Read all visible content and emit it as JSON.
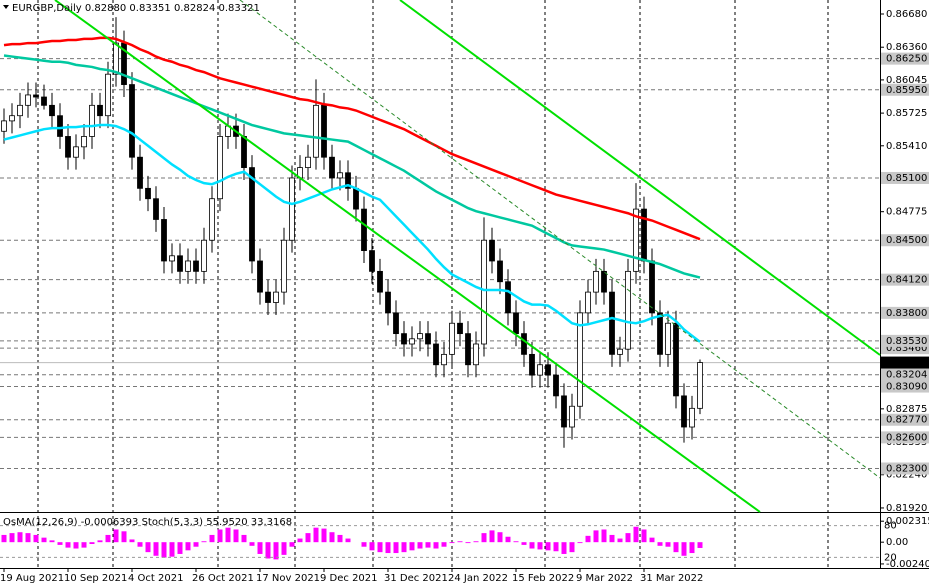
{
  "chart_data": [
    {
      "type": "candlestick",
      "title": "EURGBP,Daily  0.82880 0.83351 0.82824 0.83321",
      "categories": [
        "19 Aug 2021",
        null,
        null,
        null,
        null,
        null,
        null,
        null,
        "10 Sep 2021",
        null,
        null,
        null,
        null,
        null,
        null,
        null,
        "4 Oct 2021",
        null,
        null,
        null,
        null,
        null,
        null,
        null,
        "26 Oct 2021",
        null,
        null,
        null,
        null,
        null,
        null,
        null,
        "17 Nov 2021",
        null,
        null,
        null,
        null,
        null,
        null,
        null,
        "9 Dec 2021",
        null,
        null,
        null,
        null,
        null,
        null,
        null,
        "31 Dec 2021",
        null,
        null,
        null,
        null,
        null,
        null,
        null,
        "24 Jan 2022",
        null,
        null,
        null,
        null,
        null,
        null,
        null,
        "15 Feb 2022",
        null,
        null,
        null,
        null,
        null,
        null,
        null,
        "9 Mar 2022",
        null,
        null,
        null,
        null,
        null,
        null,
        null,
        "31 Mar 2022",
        null,
        null,
        null,
        null,
        null,
        null,
        null
      ],
      "open": [
        0.8555,
        0.8565,
        0.857,
        0.858,
        0.859,
        0.8588,
        0.858,
        0.857,
        0.855,
        0.853,
        0.854,
        0.855,
        0.858,
        0.857,
        0.861,
        0.864,
        0.86,
        0.853,
        0.85,
        0.849,
        0.847,
        0.843,
        0.8435,
        0.842,
        0.843,
        0.842,
        0.845,
        0.849,
        0.855,
        0.856,
        0.855,
        0.852,
        0.843,
        0.84,
        0.839,
        0.84,
        0.845,
        0.851,
        0.852,
        0.853,
        0.858,
        0.853,
        0.851,
        0.8515,
        0.85,
        0.848,
        0.844,
        0.842,
        0.84,
        0.838,
        0.836,
        0.835,
        0.8355,
        0.836,
        0.835,
        0.833,
        0.834,
        0.837,
        0.836,
        0.833,
        0.835,
        0.845,
        0.843,
        0.841,
        0.838,
        0.836,
        0.834,
        0.832,
        0.833,
        0.832,
        0.83,
        0.827,
        0.829,
        0.838,
        0.84,
        0.842,
        0.84,
        0.834,
        0.8345,
        0.842,
        0.848,
        0.843,
        0.838,
        0.834,
        0.837,
        0.83,
        0.827,
        0.8288
      ],
      "high": [
        0.8577,
        0.8582,
        0.8592,
        0.8602,
        0.8602,
        0.86,
        0.8592,
        0.8582,
        0.8562,
        0.8552,
        0.8562,
        0.8592,
        0.8592,
        0.8622,
        0.8665,
        0.8652,
        0.8612,
        0.8542,
        0.8512,
        0.8502,
        0.8482,
        0.8447,
        0.8447,
        0.8442,
        0.8442,
        0.8462,
        0.8502,
        0.8562,
        0.8572,
        0.8572,
        0.8562,
        0.8532,
        0.8442,
        0.8412,
        0.8412,
        0.8462,
        0.8522,
        0.8532,
        0.8542,
        0.8605,
        0.8592,
        0.8542,
        0.8527,
        0.8527,
        0.8512,
        0.8492,
        0.8452,
        0.8432,
        0.8412,
        0.8392,
        0.8372,
        0.8367,
        0.8372,
        0.8372,
        0.8362,
        0.8352,
        0.8382,
        0.8382,
        0.8372,
        0.8362,
        0.8472,
        0.8462,
        0.8442,
        0.8422,
        0.8392,
        0.8372,
        0.8352,
        0.8342,
        0.8342,
        0.8332,
        0.8312,
        0.8302,
        0.8392,
        0.8412,
        0.8432,
        0.8432,
        0.8412,
        0.8357,
        0.8432,
        0.8505,
        0.8492,
        0.8442,
        0.8392,
        0.8382,
        0.8382,
        0.8312,
        0.83,
        0.83351
      ],
      "low": [
        0.8543,
        0.8553,
        0.8558,
        0.8568,
        0.8578,
        0.8576,
        0.8558,
        0.8538,
        0.8518,
        0.8518,
        0.8528,
        0.8538,
        0.8558,
        0.8558,
        0.8598,
        0.8588,
        0.8518,
        0.8488,
        0.8478,
        0.8458,
        0.8418,
        0.8418,
        0.8408,
        0.8408,
        0.8408,
        0.8408,
        0.8438,
        0.8478,
        0.8538,
        0.8538,
        0.8508,
        0.8418,
        0.8388,
        0.8378,
        0.8378,
        0.8388,
        0.8438,
        0.8498,
        0.8508,
        0.8518,
        0.8518,
        0.8498,
        0.8498,
        0.8488,
        0.8468,
        0.8428,
        0.8408,
        0.8388,
        0.8368,
        0.8348,
        0.8338,
        0.8338,
        0.8343,
        0.8338,
        0.8318,
        0.8318,
        0.8328,
        0.8348,
        0.8318,
        0.8318,
        0.8338,
        0.8418,
        0.8398,
        0.8368,
        0.8348,
        0.8328,
        0.8308,
        0.8308,
        0.8308,
        0.8288,
        0.825,
        0.8258,
        0.8278,
        0.8368,
        0.8388,
        0.8388,
        0.8328,
        0.8328,
        0.8333,
        0.8408,
        0.8418,
        0.8368,
        0.8328,
        0.8328,
        0.8288,
        0.8255,
        0.8258,
        0.82824
      ],
      "close": [
        0.8565,
        0.857,
        0.858,
        0.859,
        0.8588,
        0.858,
        0.857,
        0.855,
        0.853,
        0.854,
        0.855,
        0.858,
        0.857,
        0.861,
        0.864,
        0.86,
        0.853,
        0.85,
        0.849,
        0.847,
        0.843,
        0.8435,
        0.842,
        0.843,
        0.842,
        0.845,
        0.849,
        0.855,
        0.856,
        0.855,
        0.852,
        0.843,
        0.84,
        0.839,
        0.84,
        0.845,
        0.851,
        0.852,
        0.853,
        0.858,
        0.853,
        0.851,
        0.8515,
        0.85,
        0.848,
        0.844,
        0.842,
        0.84,
        0.838,
        0.836,
        0.835,
        0.8355,
        0.836,
        0.835,
        0.833,
        0.834,
        0.837,
        0.836,
        0.833,
        0.835,
        0.845,
        0.843,
        0.841,
        0.838,
        0.836,
        0.834,
        0.832,
        0.833,
        0.832,
        0.83,
        0.827,
        0.829,
        0.838,
        0.84,
        0.842,
        0.84,
        0.834,
        0.8345,
        0.842,
        0.848,
        0.843,
        0.838,
        0.834,
        0.837,
        0.83,
        0.827,
        0.8288,
        0.83321
      ],
      "up_color": "#ffffff",
      "down_color": "#000000",
      "series": [
        {
          "color": "#ff0000",
          "values": [
            0.8638,
            0.8639,
            0.8639,
            0.864,
            0.864,
            0.8641,
            0.8642,
            0.8642,
            0.8643,
            0.8643,
            0.8644,
            0.8644,
            0.8645,
            0.8645,
            0.8644,
            0.8641,
            0.8638,
            0.8634,
            0.8631,
            0.8627,
            0.8624,
            0.8622,
            0.8619,
            0.8617,
            0.8614,
            0.8612,
            0.8609,
            0.8606,
            0.8604,
            0.8602,
            0.86,
            0.8598,
            0.8596,
            0.8594,
            0.8592,
            0.859,
            0.8588,
            0.8586,
            0.8585,
            0.8583,
            0.8581,
            0.858,
            0.8578,
            0.8577,
            0.8575,
            0.8572,
            0.8569,
            0.8566,
            0.8563,
            0.856,
            0.8557,
            0.8553,
            0.8549,
            0.8545,
            0.8541,
            0.8537,
            0.8533,
            0.853,
            0.8527,
            0.8524,
            0.8521,
            0.8518,
            0.8515,
            0.8512,
            0.8509,
            0.8506,
            0.8503,
            0.85,
            0.8497,
            0.8494,
            0.8492,
            0.849,
            0.8488,
            0.8486,
            0.8484,
            0.8482,
            0.848,
            0.8478,
            0.8476,
            0.8473,
            0.8471,
            0.8469,
            0.8466,
            0.8463,
            0.846,
            0.8457,
            0.8454,
            0.8451
          ]
        },
        {
          "color": "#00c8a0",
          "values": [
            0.8628,
            0.8627,
            0.8626,
            0.8625,
            0.8624,
            0.8623,
            0.8622,
            0.8622,
            0.8621,
            0.8619,
            0.8618,
            0.8617,
            0.8615,
            0.8614,
            0.8612,
            0.8609,
            0.8606,
            0.8603,
            0.86,
            0.8597,
            0.8594,
            0.8591,
            0.8588,
            0.8585,
            0.8582,
            0.8579,
            0.8576,
            0.8573,
            0.857,
            0.8567,
            0.8564,
            0.8561,
            0.8559,
            0.8557,
            0.8555,
            0.8553,
            0.8552,
            0.8551,
            0.855,
            0.8549,
            0.8548,
            0.8547,
            0.8546,
            0.8545,
            0.8541,
            0.8537,
            0.8533,
            0.8529,
            0.8525,
            0.8521,
            0.8517,
            0.8512,
            0.8507,
            0.8502,
            0.8497,
            0.8493,
            0.8489,
            0.8485,
            0.8481,
            0.8478,
            0.8476,
            0.8474,
            0.8472,
            0.847,
            0.8468,
            0.8466,
            0.8464,
            0.846,
            0.8456,
            0.8452,
            0.8448,
            0.8445,
            0.8444,
            0.8443,
            0.8442,
            0.8441,
            0.8439,
            0.8437,
            0.8435,
            0.8433,
            0.8431,
            0.8429,
            0.8427,
            0.8424,
            0.8421,
            0.8418,
            0.8416,
            0.8414
          ]
        },
        {
          "color": "#00e0ff",
          "values": [
            0.8547,
            0.8549,
            0.8551,
            0.8553,
            0.8555,
            0.8557,
            0.8558,
            0.8558,
            0.8559,
            0.8559,
            0.856,
            0.856,
            0.8561,
            0.8561,
            0.856,
            0.8557,
            0.8553,
            0.8547,
            0.8541,
            0.8535,
            0.8529,
            0.8523,
            0.8518,
            0.8512,
            0.8508,
            0.8505,
            0.8504,
            0.8507,
            0.8511,
            0.8514,
            0.8516,
            0.851,
            0.8504,
            0.8498,
            0.8492,
            0.8487,
            0.8485,
            0.8487,
            0.849,
            0.8493,
            0.8496,
            0.8499,
            0.8501,
            0.8503,
            0.85,
            0.8496,
            0.8492,
            0.8489,
            0.8481,
            0.8473,
            0.8465,
            0.8457,
            0.8449,
            0.8441,
            0.8432,
            0.8424,
            0.8417,
            0.8413,
            0.8409,
            0.8405,
            0.8402,
            0.8402,
            0.8402,
            0.8401,
            0.8396,
            0.8391,
            0.8388,
            0.8388,
            0.8387,
            0.8382,
            0.8376,
            0.837,
            0.8368,
            0.8369,
            0.8371,
            0.8373,
            0.8375,
            0.8373,
            0.8371,
            0.837,
            0.8372,
            0.8375,
            0.8377,
            0.8378,
            0.8372,
            0.8364,
            0.8358,
            0.8352
          ]
        }
      ],
      "ylim": [
        0.81881,
        0.86815
      ],
      "yticks": [
        {
          "value": 0.8668,
          "label": "0.86680"
        },
        {
          "value": 0.8636,
          "label": "0.86360"
        },
        {
          "value": 0.86045,
          "label": "0.86045"
        },
        {
          "value": 0.85725,
          "label": "0.85725"
        },
        {
          "value": 0.8541,
          "label": "0.85410"
        },
        {
          "value": 0.84775,
          "label": "0.84775"
        },
        {
          "value": 0.82875,
          "label": "0.82875"
        },
        {
          "value": 0.82555,
          "label": "0.82555"
        },
        {
          "value": 0.8224,
          "label": "0.82240"
        },
        {
          "value": 0.8192,
          "label": "0.81920"
        }
      ],
      "levels": [
        {
          "value": 0.8625,
          "label": "0.86250"
        },
        {
          "value": 0.8595,
          "label": "0.85950"
        },
        {
          "value": 0.851,
          "label": "0.85100"
        },
        {
          "value": 0.845,
          "label": "0.84500"
        },
        {
          "value": 0.8412,
          "label": "0.84120"
        },
        {
          "value": 0.838,
          "label": "0.83800"
        },
        {
          "value": 0.8346,
          "label": "0.83460"
        },
        {
          "value": 0.8353,
          "label": "0.83530"
        },
        {
          "value": 0.83204,
          "label": "0.83204"
        },
        {
          "value": 0.8309,
          "label": "0.83090"
        },
        {
          "value": 0.8277,
          "label": "0.82770"
        },
        {
          "value": 0.826,
          "label": "0.82600"
        },
        {
          "value": 0.823,
          "label": "0.82300"
        }
      ],
      "current_price": {
        "value": 0.83321,
        "label": "0.83321"
      }
    },
    {
      "type": "bar",
      "title": "OsMA(12,26,9) -0.0006393 Stoch(5,3,3) 55.9520 33.3168",
      "color": "#ff00ff",
      "values": [
        0.0008,
        0.001,
        0.0011,
        0.001,
        0.0008,
        0.0005,
        0.0002,
        -0.0003,
        -0.0006,
        -0.0007,
        -0.0006,
        -0.0002,
        0.0002,
        0.0008,
        0.0014,
        0.0012,
        0.0003,
        -0.0005,
        -0.0011,
        -0.0015,
        -0.0017,
        -0.0016,
        -0.0013,
        -0.0009,
        -0.0005,
        0.0001,
        0.0008,
        0.0014,
        0.0016,
        0.0014,
        0.0008,
        -0.0004,
        -0.0013,
        -0.0018,
        -0.0019,
        -0.0014,
        -0.0005,
        0.0004,
        0.001,
        0.0016,
        0.0015,
        0.0011,
        0.0008,
        0.0004,
        0,
        -0.0005,
        -0.0009,
        -0.0011,
        -0.0012,
        -0.0012,
        -0.0011,
        -0.0009,
        -0.0007,
        -0.0006,
        -0.0007,
        -0.0005,
        -0.0001,
        0.0001,
        -0.0001,
        0.0001,
        0.001,
        0.0013,
        0.0011,
        0.0006,
        0.0001,
        -0.0003,
        -0.0007,
        -0.0008,
        -0.0009,
        -0.001,
        -0.0013,
        -0.0011,
        -0.0001,
        0.0007,
        0.0013,
        0.0014,
        0.0008,
        0.0004,
        0.001,
        0.0017,
        0.0014,
        0.0005,
        -0.0004,
        -0.0005,
        -0.0011,
        -0.0015,
        -0.0012,
        -0.0006393
      ],
      "ylim": [
        -0.00285,
        0.003
      ],
      "yticks": [
        0.0023152,
        {
          "value": 0,
          "label": "0.00"
        },
        -0.002401
      ],
      "y2lim": [
        0,
        100
      ],
      "y2ticks": [
        80,
        20
      ]
    }
  ]
}
